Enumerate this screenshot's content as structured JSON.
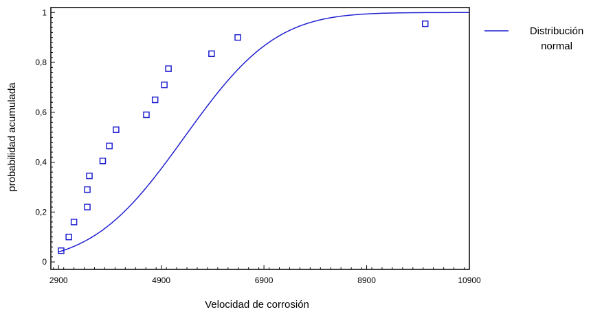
{
  "chart_data": {
    "type": "scatter",
    "xlabel": "Velocidad de corrosión",
    "ylabel": "probabilidad acumulada",
    "xlim": [
      2750,
      10900
    ],
    "ylim": [
      -0.03,
      1.02
    ],
    "x_ticks": [
      2900,
      4900,
      6900,
      8900,
      10900
    ],
    "x_tick_labels": [
      "2900",
      "4900",
      "6900",
      "8900",
      "10900"
    ],
    "y_ticks": [
      0,
      0.2,
      0.4,
      0.6,
      0.8,
      1
    ],
    "y_tick_labels": [
      "0",
      "0,2",
      "0,4",
      "0,6",
      "0,8",
      "1"
    ],
    "grid": false,
    "legend_position": "right",
    "colors": {
      "series": "#1f1fd0",
      "axes": "#000000"
    },
    "series": [
      {
        "type": "scatter",
        "marker": "square",
        "points": [
          {
            "x": 2950,
            "y": 0.045
          },
          {
            "x": 3100,
            "y": 0.1
          },
          {
            "x": 3200,
            "y": 0.16
          },
          {
            "x": 3460,
            "y": 0.22
          },
          {
            "x": 3460,
            "y": 0.29
          },
          {
            "x": 3500,
            "y": 0.345
          },
          {
            "x": 3760,
            "y": 0.405
          },
          {
            "x": 3890,
            "y": 0.465
          },
          {
            "x": 4020,
            "y": 0.53
          },
          {
            "x": 4610,
            "y": 0.59
          },
          {
            "x": 4780,
            "y": 0.65
          },
          {
            "x": 4960,
            "y": 0.71
          },
          {
            "x": 5040,
            "y": 0.775
          },
          {
            "x": 5880,
            "y": 0.835
          },
          {
            "x": 6390,
            "y": 0.9
          },
          {
            "x": 10040,
            "y": 0.955
          }
        ]
      },
      {
        "type": "line",
        "name": "Distribución normal",
        "distribution": {
          "mean": 5350,
          "sd": 1400
        },
        "x_range": [
          2900,
          10900
        ]
      }
    ],
    "legend": {
      "line1": "Distribución",
      "line2": "normal"
    }
  }
}
